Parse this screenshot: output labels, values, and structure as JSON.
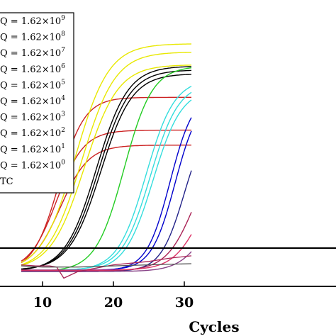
{
  "chart_data": {
    "type": "line",
    "title": "",
    "xlabel": "Cycles",
    "ylabel": "",
    "x_ticks": [
      "10",
      "20",
      "30"
    ],
    "xlim": [
      7,
      31
    ],
    "ylim": [
      0,
      1
    ],
    "grid": false,
    "legend_position": "top-left",
    "legend_entries": [
      {
        "prefix": "Q = 1.62×10",
        "exp": "9",
        "color": "#e8e800"
      },
      {
        "prefix": "Q = 1.62×10",
        "exp": "8",
        "color": "#cc2222"
      },
      {
        "prefix": "Q = 1.62×10",
        "exp": "7",
        "color": "#000000"
      },
      {
        "prefix": "Q = 1.62×10",
        "exp": "6",
        "color": "#22cc22"
      },
      {
        "prefix": "Q = 1.62×10",
        "exp": "5",
        "color": "#33dddd"
      },
      {
        "prefix": "Q = 1.62×10",
        "exp": "4",
        "color": "#0000cc"
      },
      {
        "prefix": "Q = 1.62×10",
        "exp": "3",
        "color": "#222288"
      },
      {
        "prefix": "Q = 1.62×10",
        "exp": "2",
        "color": "#aa2255"
      },
      {
        "prefix": "Q = 1.62×10",
        "exp": "1",
        "color": "#dd3366"
      },
      {
        "prefix": "Q = 1.62×10",
        "exp": "0",
        "color": "#884488"
      },
      {
        "prefix": "TC",
        "exp": "",
        "color": "#555555"
      }
    ],
    "threshold": 0.105,
    "series": [
      {
        "color": "#cc2222",
        "ct": 12.3,
        "plateau": 0.78,
        "k": 0.55,
        "cycles": [
          7,
          31
        ]
      },
      {
        "color": "#cc2222",
        "ct": 12.0,
        "plateau": 0.63,
        "k": 0.52,
        "cycles": [
          7,
          31
        ]
      },
      {
        "color": "#cc2222",
        "ct": 12.5,
        "plateau": 0.56,
        "k": 0.5,
        "cycles": [
          7,
          31
        ]
      },
      {
        "color": "#e8e800",
        "ct": 14.6,
        "plateau": 1.02,
        "k": 0.42,
        "cycles": [
          7,
          31
        ]
      },
      {
        "color": "#e8e800",
        "ct": 15.5,
        "plateau": 0.98,
        "k": 0.42,
        "cycles": [
          7,
          31
        ]
      },
      {
        "color": "#e8e800",
        "ct": 15.9,
        "plateau": 0.92,
        "k": 0.42,
        "cycles": [
          7,
          31
        ]
      },
      {
        "color": "#000000",
        "ct": 17.6,
        "plateau": 0.92,
        "k": 0.45,
        "cycles": [
          7,
          31
        ]
      },
      {
        "color": "#000000",
        "ct": 17.9,
        "plateau": 0.9,
        "k": 0.45,
        "cycles": [
          7,
          31
        ]
      },
      {
        "color": "#000000",
        "ct": 18.2,
        "plateau": 0.88,
        "k": 0.45,
        "cycles": [
          7,
          31
        ]
      },
      {
        "color": "#22cc22",
        "ct": 21.5,
        "plateau": 0.92,
        "k": 0.5,
        "cycles": [
          7,
          31
        ]
      },
      {
        "color": "#33dddd",
        "ct": 24.6,
        "plateau": 0.86,
        "k": 0.5,
        "cycles": [
          7,
          31
        ]
      },
      {
        "color": "#33dddd",
        "ct": 25.2,
        "plateau": 0.84,
        "k": 0.5,
        "cycles": [
          7,
          31
        ]
      },
      {
        "color": "#33dddd",
        "ct": 25.6,
        "plateau": 0.82,
        "k": 0.5,
        "cycles": [
          7,
          31
        ]
      },
      {
        "color": "#0000cc",
        "ct": 28.0,
        "plateau": 0.8,
        "k": 0.6,
        "cycles": [
          7,
          31
        ]
      },
      {
        "color": "#0000cc",
        "ct": 28.7,
        "plateau": 0.78,
        "k": 0.6,
        "cycles": [
          7,
          31
        ]
      },
      {
        "color": "#222288",
        "ct": 30.0,
        "plateau": 0.7,
        "k": 0.6,
        "cycles": [
          7,
          31
        ]
      },
      {
        "color": "#aa2255",
        "ct": 31.5,
        "plateau": 0.6,
        "k": 0.5,
        "cycles": [
          7,
          31
        ]
      },
      {
        "color": "#dd3366",
        "ct": 32.5,
        "plateau": 0.5,
        "k": 0.5,
        "cycles": [
          7,
          31
        ]
      },
      {
        "color": "#884488",
        "ct": 33.5,
        "plateau": 0.4,
        "k": 0.5,
        "cycles": [
          7,
          31
        ]
      }
    ],
    "ntc_series": [
      {
        "color": "#aa2255",
        "points": [
          [
            7,
            0.03
          ],
          [
            9,
            0.025
          ],
          [
            11,
            0.025
          ],
          [
            12,
            0.02
          ],
          [
            13,
            -0.03
          ],
          [
            15,
            0.0
          ],
          [
            20,
            0.03
          ],
          [
            25,
            0.045
          ],
          [
            28,
            0.06
          ],
          [
            31,
            0.07
          ]
        ]
      },
      {
        "color": "#555555",
        "points": [
          [
            7,
            0.025
          ],
          [
            10,
            0.02
          ],
          [
            15,
            0.02
          ],
          [
            20,
            0.025
          ],
          [
            25,
            0.03
          ],
          [
            31,
            0.035
          ]
        ]
      }
    ]
  }
}
